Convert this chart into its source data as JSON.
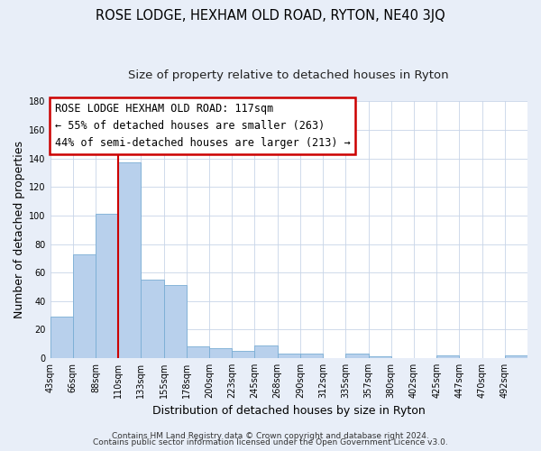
{
  "title": "ROSE LODGE, HEXHAM OLD ROAD, RYTON, NE40 3JQ",
  "subtitle": "Size of property relative to detached houses in Ryton",
  "xlabel": "Distribution of detached houses by size in Ryton",
  "ylabel": "Number of detached properties",
  "bar_values": [
    29,
    73,
    101,
    137,
    55,
    51,
    8,
    7,
    5,
    9,
    3,
    3,
    0,
    3,
    1,
    0,
    0,
    2,
    0,
    0,
    2
  ],
  "x_tick_labels": [
    "43sqm",
    "66sqm",
    "88sqm",
    "110sqm",
    "133sqm",
    "155sqm",
    "178sqm",
    "200sqm",
    "223sqm",
    "245sqm",
    "268sqm",
    "290sqm",
    "312sqm",
    "335sqm",
    "357sqm",
    "380sqm",
    "402sqm",
    "425sqm",
    "447sqm",
    "470sqm",
    "492sqm"
  ],
  "bar_color": "#b8d0ec",
  "bar_edge_color": "#7aadd4",
  "vline_x": 3,
  "vline_color": "#cc0000",
  "ylim": [
    0,
    180
  ],
  "yticks": [
    0,
    20,
    40,
    60,
    80,
    100,
    120,
    140,
    160,
    180
  ],
  "annotation_title": "ROSE LODGE HEXHAM OLD ROAD: 117sqm",
  "annotation_line1": "← 55% of detached houses are smaller (263)",
  "annotation_line2": "44% of semi-detached houses are larger (213) →",
  "footer1": "Contains HM Land Registry data © Crown copyright and database right 2024.",
  "footer2": "Contains public sector information licensed under the Open Government Licence v3.0.",
  "bg_color": "#e8eef8",
  "plot_bg_color": "#ffffff",
  "grid_color": "#c8d4e8",
  "title_fontsize": 10.5,
  "subtitle_fontsize": 9.5,
  "axis_label_fontsize": 9,
  "tick_fontsize": 7,
  "annotation_fontsize": 8.5,
  "footer_fontsize": 6.5
}
